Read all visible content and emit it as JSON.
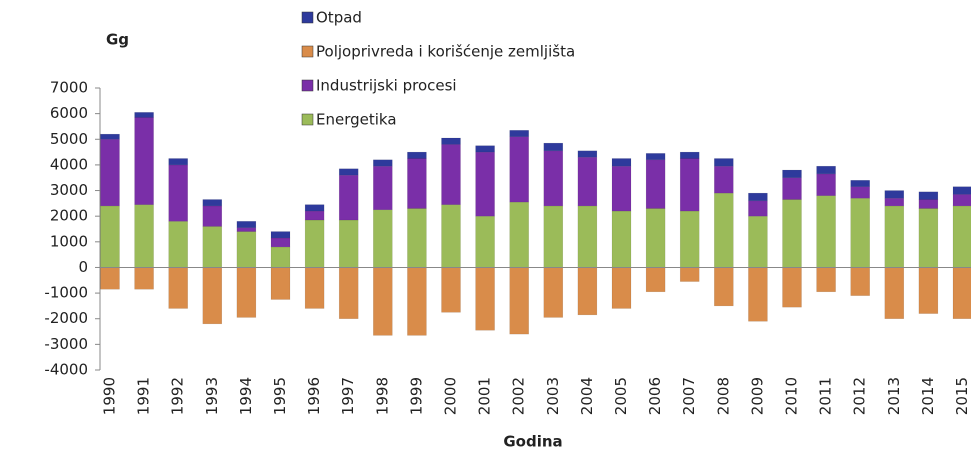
{
  "chart_data": {
    "type": "stacked-bar",
    "y_label": "Gg",
    "x_label": "Godina",
    "categories": [
      "1990",
      "1991",
      "1992",
      "1993",
      "1994",
      "1995",
      "1996",
      "1997",
      "1998",
      "1999",
      "2000",
      "2001",
      "2002",
      "2003",
      "2004",
      "2005",
      "2006",
      "2007",
      "2008",
      "2009",
      "2010",
      "2011",
      "2012",
      "2013",
      "2014",
      "2015"
    ],
    "series": [
      {
        "name": "Energetika",
        "color": "#9bbb59",
        "values": [
          2400,
          2450,
          1800,
          1600,
          1400,
          800,
          1850,
          1850,
          2250,
          2300,
          2450,
          2000,
          2550,
          2400,
          2400,
          2200,
          2300,
          2200,
          2900,
          2000,
          2650,
          2800,
          2700,
          2400,
          2300,
          2400
        ]
      },
      {
        "name": "Industrijski procesi",
        "color": "#7a2fa8",
        "values": [
          2600,
          3400,
          2200,
          800,
          150,
          350,
          350,
          1750,
          1700,
          1950,
          2350,
          2500,
          2550,
          2150,
          1900,
          1750,
          1900,
          2050,
          1050,
          600,
          850,
          850,
          450,
          300,
          350,
          450
        ]
      },
      {
        "name": "Poljoprivreda i korišćenje zemljišta",
        "color": "#d98c4a",
        "values": [
          -850,
          -850,
          -1600,
          -2200,
          -1950,
          -1250,
          -1600,
          -2000,
          -2650,
          -2650,
          -1750,
          -2450,
          -2600,
          -1950,
          -1850,
          -1600,
          -950,
          -550,
          -1500,
          -2100,
          -1550,
          -950,
          -1100,
          -2000,
          -1800,
          -2000
        ]
      },
      {
        "name": "Otpad",
        "color": "#2e3a9c",
        "values": [
          200,
          200,
          250,
          250,
          250,
          250,
          250,
          250,
          250,
          250,
          250,
          250,
          250,
          300,
          250,
          300,
          250,
          250,
          300,
          300,
          300,
          300,
          250,
          300,
          300,
          300
        ]
      }
    ],
    "ylim": [
      -4000,
      7000
    ],
    "yticks": [
      7000,
      6000,
      5000,
      4000,
      3000,
      2000,
      1000,
      0,
      -1000,
      -2000,
      -3000,
      -4000
    ],
    "legend": "top"
  }
}
